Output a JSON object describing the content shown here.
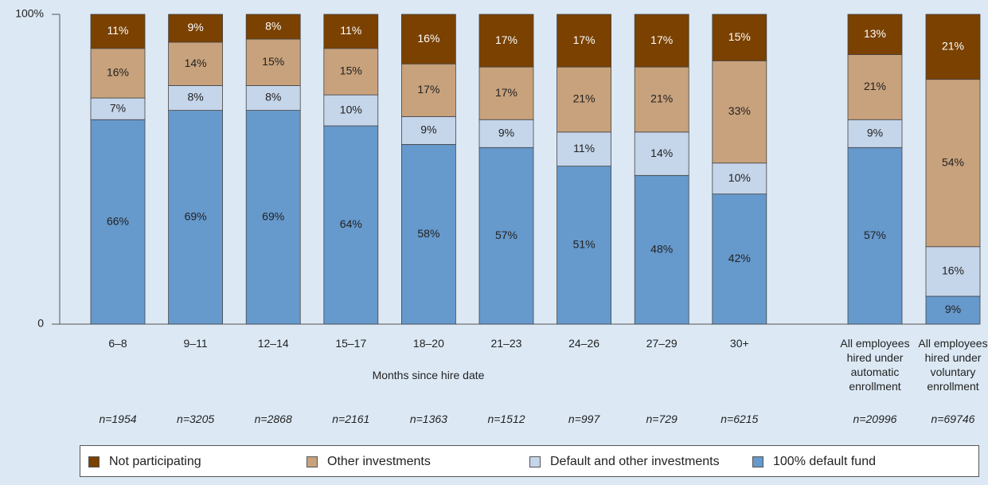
{
  "chart_data": {
    "type": "stacked_bar",
    "categories": [
      "6–8",
      "9–11",
      "12–14",
      "15–17",
      "18–20",
      "21–23",
      "24–26",
      "27–29",
      "30+",
      "All employees hired under automatic enrollment",
      "All employees hired under voluntary enrollment"
    ],
    "sample_sizes": [
      "n=1954",
      "n=3205",
      "n=2868",
      "n=2161",
      "n=1363",
      "n=1512",
      "n=997",
      "n=729",
      "n=6215",
      "n=20996",
      "n=69746"
    ],
    "x_label": "Months since hire date",
    "ylim": [
      0,
      100
    ],
    "yticks": [
      0,
      {
        "value": 100,
        "label": "100%"
      }
    ],
    "series": [
      {
        "name": "100% default fund",
        "color": "#6699cc",
        "values": [
          66,
          69,
          69,
          64,
          58,
          57,
          51,
          48,
          42,
          57,
          9
        ],
        "value_labels": [
          "66%",
          "69%",
          "69%",
          "64%",
          "58%",
          "57%",
          "51%",
          "48%",
          "42%",
          "57%",
          "9%"
        ]
      },
      {
        "name": "Default and other investments",
        "color": "#c5d5ea",
        "values": [
          7,
          8,
          8,
          10,
          9,
          9,
          11,
          14,
          10,
          9,
          16
        ],
        "value_labels": [
          "7%",
          "8%",
          "8%",
          "10%",
          "9%",
          "9%",
          "11%",
          "14%",
          "10%",
          "9%",
          "16%"
        ]
      },
      {
        "name": "Other investments",
        "color": "#c8a27c",
        "values": [
          16,
          14,
          15,
          15,
          17,
          17,
          21,
          21,
          33,
          21,
          54
        ],
        "value_labels": [
          "16%",
          "14%",
          "15%",
          "15%",
          "17%",
          "17%",
          "21%",
          "21%",
          "33%",
          "21%",
          "54%"
        ]
      },
      {
        "name": "Not participating",
        "color": "#7a4100",
        "values": [
          11,
          9,
          8,
          11,
          16,
          17,
          17,
          17,
          15,
          13,
          21
        ],
        "value_labels": [
          "11%",
          "9%",
          "8%",
          "11%",
          "16%",
          "17%",
          "17%",
          "17%",
          "15%",
          "13%",
          "21%"
        ]
      }
    ],
    "legend_order": [
      3,
      2,
      1,
      0
    ]
  }
}
